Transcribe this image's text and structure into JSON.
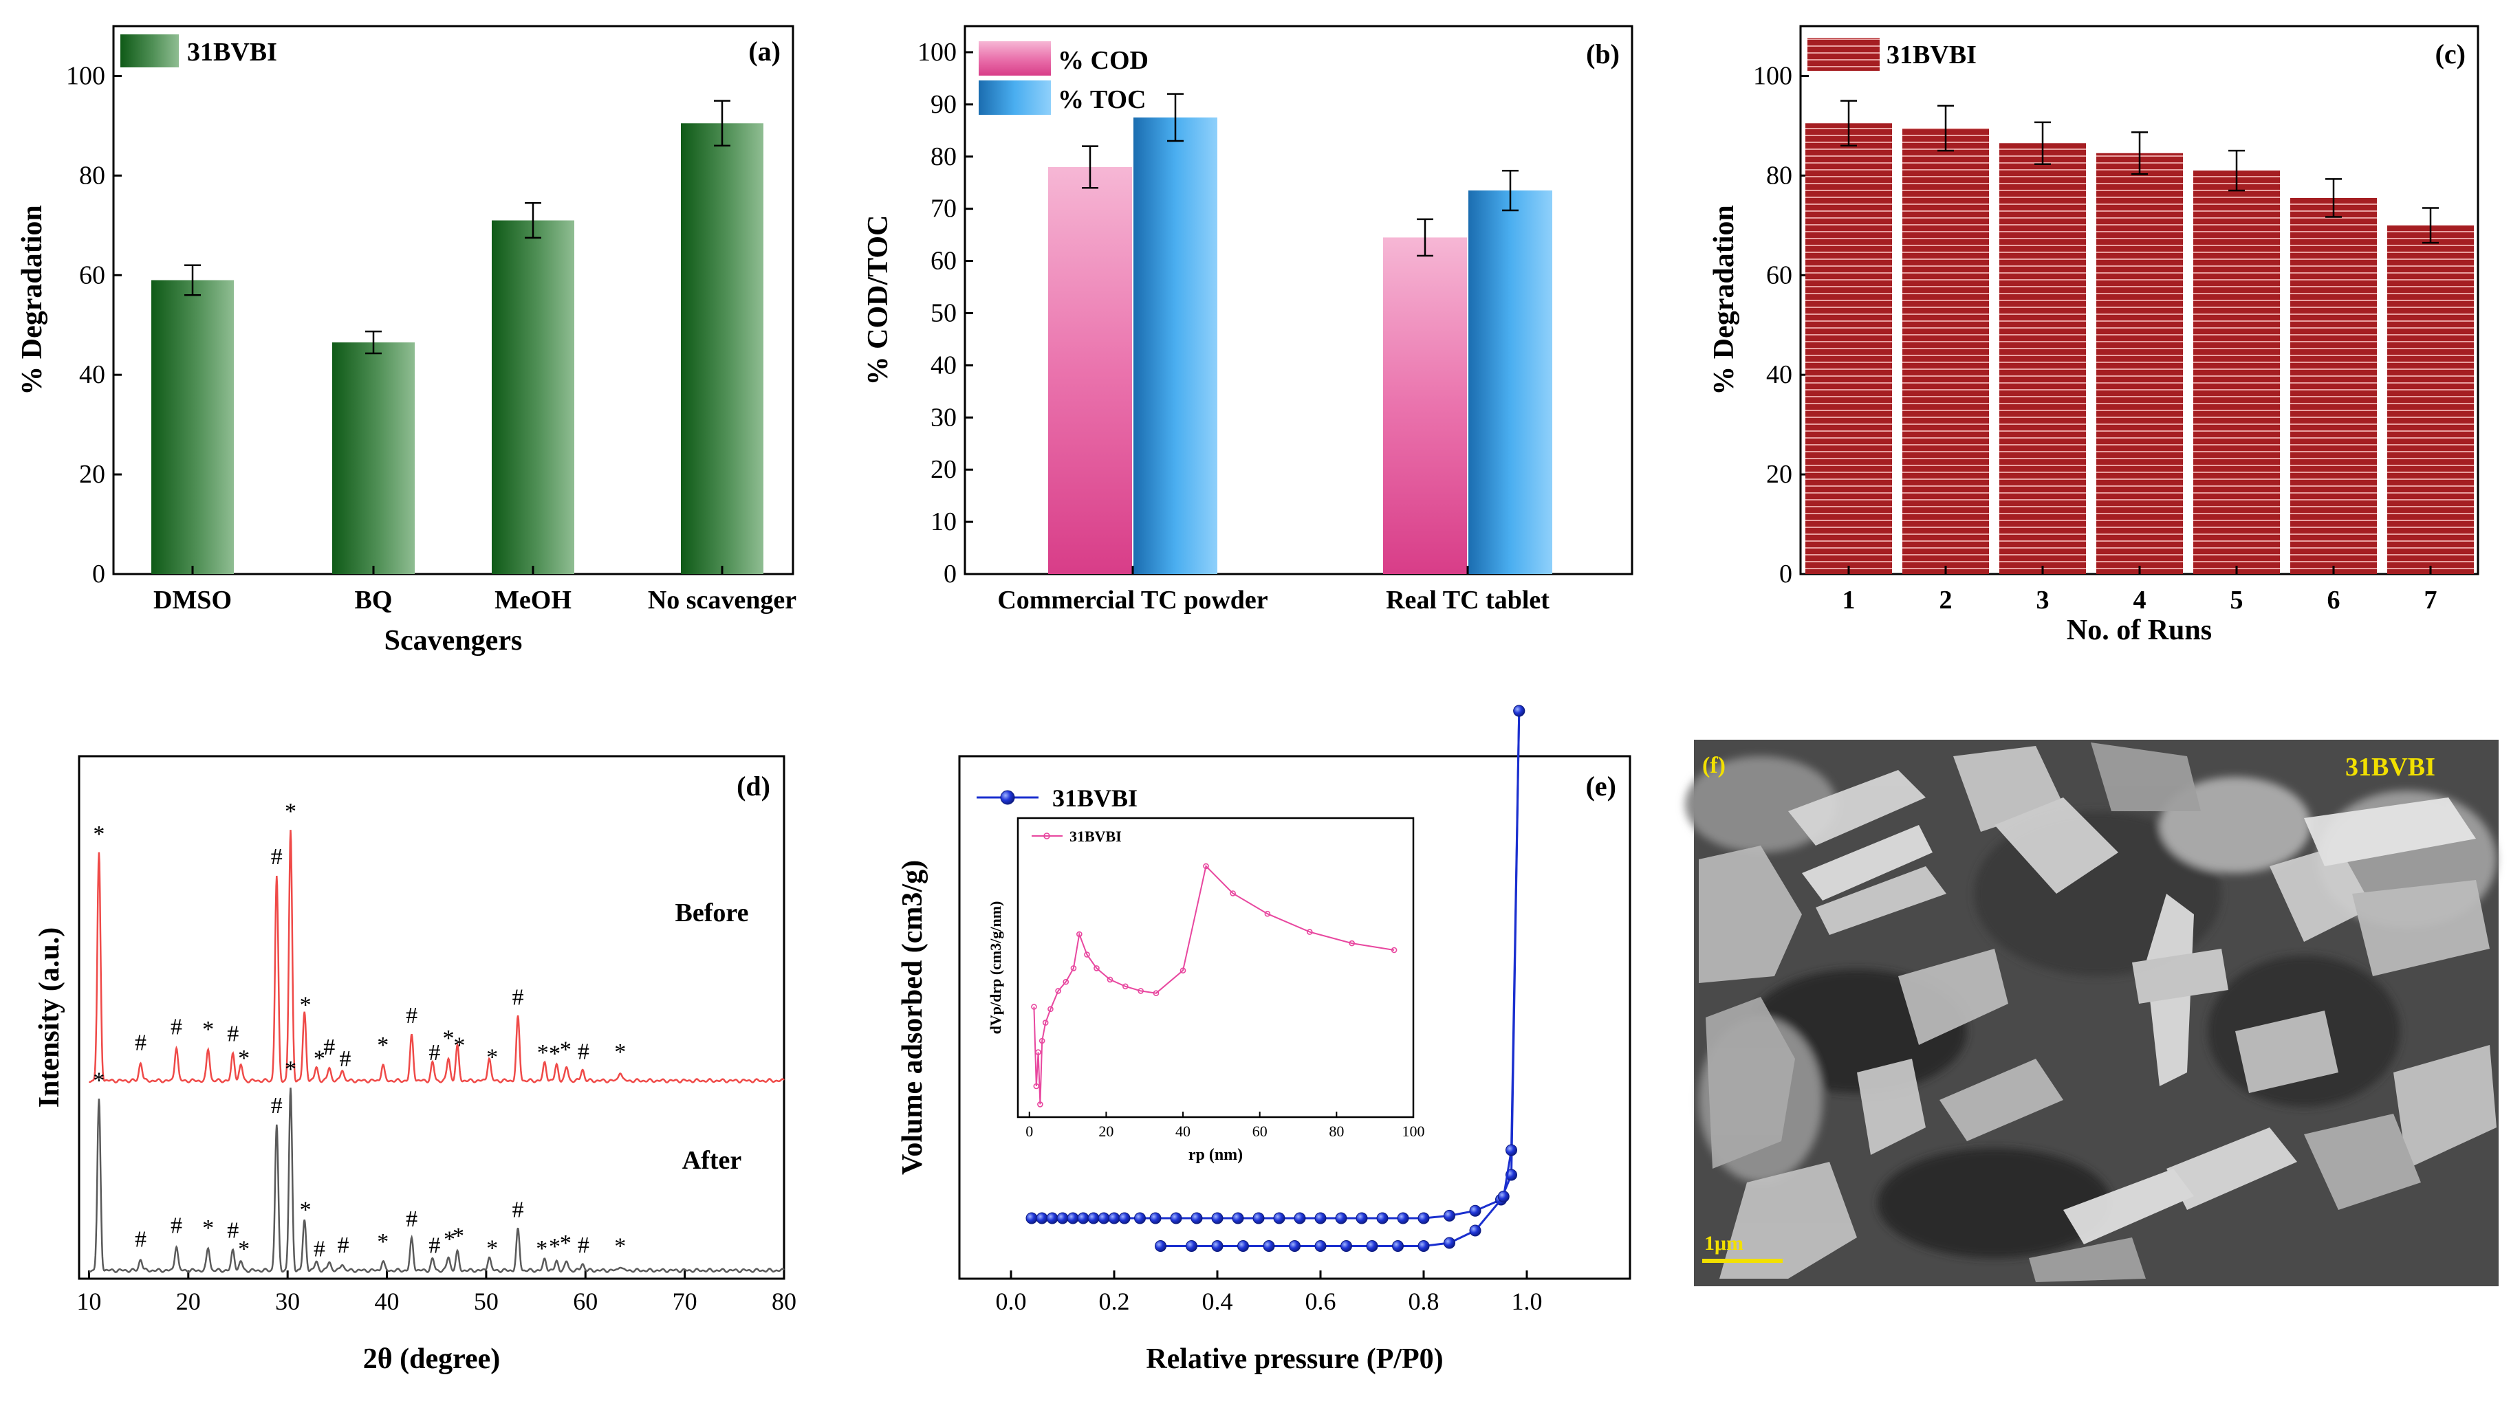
{
  "chart_data": [
    {
      "panel": "(a)",
      "type": "bar",
      "legend": "31BVBI",
      "categories": [
        "DMSO",
        "BQ",
        "MeOH",
        "No scavenger"
      ],
      "values": [
        59,
        46.5,
        71,
        90.5
      ],
      "errors": [
        3,
        2.2,
        3.5,
        4.5
      ],
      "xlabel": "Scavengers",
      "ylabel": "% Degradation",
      "ylim": [
        0,
        110
      ],
      "yticks": [
        "0",
        "20",
        "40",
        "60",
        "80",
        "100"
      ],
      "color": "#1f6b24"
    },
    {
      "panel": "(b)",
      "type": "bar",
      "categories": [
        "Commercial TC powder",
        "Real TC tablet"
      ],
      "series": [
        {
          "name": "% COD",
          "values": [
            78,
            64.5
          ],
          "errors": [
            4,
            3.5
          ],
          "color": "#e9579e"
        },
        {
          "name": "% TOC",
          "values": [
            87.5,
            73.5
          ],
          "errors": [
            4.5,
            3.8
          ],
          "color": "#3fa4e6"
        }
      ],
      "ylabel": "% COD/TOC",
      "ylim": [
        0,
        105
      ],
      "yticks": [
        "0",
        "10",
        "20",
        "30",
        "40",
        "50",
        "60",
        "70",
        "80",
        "90",
        "100"
      ]
    },
    {
      "panel": "(c)",
      "type": "bar",
      "legend": "31BVBI",
      "categories": [
        "1",
        "2",
        "3",
        "4",
        "5",
        "6",
        "7"
      ],
      "values": [
        90.5,
        89.5,
        86.5,
        84.5,
        81,
        75.5,
        70
      ],
      "errors": [
        4.5,
        4.5,
        4.2,
        4.2,
        4,
        3.8,
        3.5
      ],
      "xlabel": "No. of Runs",
      "ylabel": "% Degradation",
      "ylim": [
        0,
        110
      ],
      "yticks": [
        "0",
        "20",
        "40",
        "60",
        "80",
        "100"
      ],
      "color": "#9b1d20"
    },
    {
      "panel": "(d)",
      "type": "line",
      "xlabel": "2θ (degree)",
      "ylabel": "Intensity (a.u.)",
      "xlim": [
        9,
        80
      ],
      "xticks": [
        "10",
        "20",
        "30",
        "40",
        "50",
        "60",
        "70",
        "80"
      ],
      "series": [
        {
          "name": "Before",
          "color": "#ef4a48",
          "peaks": [
            [
              11,
              100
            ],
            [
              15.2,
              8
            ],
            [
              18.8,
              15
            ],
            [
              22,
              14
            ],
            [
              24.5,
              12
            ],
            [
              25.3,
              7
            ],
            [
              28.9,
              90
            ],
            [
              30.3,
              110
            ],
            [
              31.7,
              30
            ],
            [
              32.9,
              6
            ],
            [
              34.2,
              6
            ],
            [
              35.5,
              5
            ],
            [
              39.6,
              7
            ],
            [
              42.5,
              20
            ],
            [
              44.6,
              8
            ],
            [
              46.2,
              10
            ],
            [
              47.1,
              15
            ],
            [
              50.3,
              10
            ],
            [
              53.2,
              28
            ],
            [
              55.9,
              8
            ],
            [
              57.1,
              7
            ],
            [
              58.1,
              6
            ],
            [
              59.7,
              5
            ],
            [
              63.5,
              4
            ]
          ]
        },
        {
          "name": "After",
          "color": "#5a5a5a",
          "peaks": [
            [
              11,
              75
            ],
            [
              15.2,
              5
            ],
            [
              18.8,
              11
            ],
            [
              22,
              10
            ],
            [
              24.5,
              9
            ],
            [
              25.3,
              4
            ],
            [
              28.9,
              64
            ],
            [
              30.3,
              80
            ],
            [
              31.7,
              22
            ],
            [
              32.9,
              4
            ],
            [
              34.2,
              4
            ],
            [
              35.5,
              3
            ],
            [
              39.6,
              4
            ],
            [
              42.5,
              14
            ],
            [
              44.6,
              5
            ],
            [
              46.2,
              6
            ],
            [
              47.1,
              8
            ],
            [
              50.3,
              6
            ],
            [
              53.2,
              18
            ],
            [
              55.9,
              5
            ],
            [
              57.1,
              4
            ],
            [
              58.1,
              4
            ],
            [
              59.7,
              3
            ],
            [
              63.5,
              2
            ]
          ]
        }
      ],
      "markers_before": [
        {
          "x": 11,
          "s": "*"
        },
        {
          "x": 15.2,
          "s": "#"
        },
        {
          "x": 18.8,
          "s": "#"
        },
        {
          "x": 22,
          "s": "*"
        },
        {
          "x": 24.5,
          "s": "#"
        },
        {
          "x": 25.6,
          "s": "*"
        },
        {
          "x": 28.9,
          "s": "#"
        },
        {
          "x": 30.3,
          "s": "*"
        },
        {
          "x": 31.8,
          "s": "*"
        },
        {
          "x": 33.2,
          "s": "*"
        },
        {
          "x": 34.2,
          "s": "#"
        },
        {
          "x": 35.8,
          "s": "#"
        },
        {
          "x": 39.6,
          "s": "*"
        },
        {
          "x": 42.5,
          "s": "#"
        },
        {
          "x": 44.8,
          "s": "#"
        },
        {
          "x": 46.2,
          "s": "*"
        },
        {
          "x": 47.3,
          "s": "*"
        },
        {
          "x": 50.6,
          "s": "*"
        },
        {
          "x": 53.2,
          "s": "#"
        },
        {
          "x": 55.7,
          "s": "*"
        },
        {
          "x": 56.9,
          "s": "*"
        },
        {
          "x": 58,
          "s": "*"
        },
        {
          "x": 59.8,
          "s": "#"
        },
        {
          "x": 63.5,
          "s": "*"
        }
      ],
      "markers_after": [
        {
          "x": 11,
          "s": "*"
        },
        {
          "x": 15.2,
          "s": "#"
        },
        {
          "x": 18.8,
          "s": "#"
        },
        {
          "x": 22,
          "s": "*"
        },
        {
          "x": 24.5,
          "s": "#"
        },
        {
          "x": 25.6,
          "s": "*"
        },
        {
          "x": 28.9,
          "s": "#"
        },
        {
          "x": 30.3,
          "s": "*"
        },
        {
          "x": 31.8,
          "s": "*"
        },
        {
          "x": 33.2,
          "s": "#"
        },
        {
          "x": 35.6,
          "s": "#"
        },
        {
          "x": 39.6,
          "s": "*"
        },
        {
          "x": 42.5,
          "s": "#"
        },
        {
          "x": 44.8,
          "s": "#"
        },
        {
          "x": 46.3,
          "s": "*"
        },
        {
          "x": 47.2,
          "s": "*"
        },
        {
          "x": 50.6,
          "s": "*"
        },
        {
          "x": 53.2,
          "s": "#"
        },
        {
          "x": 55.6,
          "s": "*"
        },
        {
          "x": 56.9,
          "s": "*"
        },
        {
          "x": 58,
          "s": "*"
        },
        {
          "x": 59.8,
          "s": "#"
        },
        {
          "x": 63.5,
          "s": "*"
        }
      ]
    },
    {
      "panel": "(e)",
      "type": "line",
      "legend": "31BVBI",
      "xlabel": "Relative pressure (P/P0)",
      "ylabel": "Volume adsorbed (cm3/g)",
      "xlim": [
        -0.1,
        1.2
      ],
      "ylim": [
        0,
        100
      ],
      "xticks": [
        "0.0",
        "0.2",
        "0.4",
        "0.6",
        "0.8",
        "1.0"
      ],
      "color": "#1a2fcf",
      "adsorption": [
        [
          0.04,
          0
        ],
        [
          0.06,
          0
        ],
        [
          0.08,
          0
        ],
        [
          0.1,
          0
        ],
        [
          0.12,
          0
        ],
        [
          0.14,
          0
        ],
        [
          0.16,
          0
        ],
        [
          0.18,
          0
        ],
        [
          0.2,
          0
        ],
        [
          0.22,
          0
        ],
        [
          0.25,
          0
        ],
        [
          0.28,
          0
        ],
        [
          0.32,
          0
        ],
        [
          0.36,
          0
        ],
        [
          0.4,
          0
        ],
        [
          0.44,
          0
        ],
        [
          0.48,
          0
        ],
        [
          0.52,
          0
        ],
        [
          0.56,
          0
        ],
        [
          0.6,
          0
        ],
        [
          0.64,
          0
        ],
        [
          0.68,
          0
        ],
        [
          0.72,
          0
        ],
        [
          0.76,
          0
        ],
        [
          0.8,
          0
        ],
        [
          0.85,
          0.4
        ],
        [
          0.9,
          1.2
        ],
        [
          0.95,
          3
        ],
        [
          0.97,
          7
        ],
        [
          0.985,
          82
        ]
      ],
      "desorption": [
        [
          0.985,
          82
        ],
        [
          0.97,
          11
        ],
        [
          0.955,
          3.5
        ],
        [
          0.9,
          -2
        ],
        [
          0.85,
          -4
        ],
        [
          0.8,
          -4.5
        ],
        [
          0.75,
          -4.5
        ],
        [
          0.7,
          -4.5
        ],
        [
          0.65,
          -4.5
        ],
        [
          0.6,
          -4.5
        ],
        [
          0.55,
          -4.5
        ],
        [
          0.5,
          -4.5
        ],
        [
          0.45,
          -4.5
        ],
        [
          0.4,
          -4.5
        ],
        [
          0.35,
          -4.5
        ],
        [
          0.29,
          -4.5
        ]
      ],
      "inset": {
        "legend": "31BVBI",
        "xlabel": "rp (nm)",
        "ylabel": "dVp/drp (cm3/g/nm)",
        "xlim": [
          -3,
          100
        ],
        "xticks": [
          "0",
          "20",
          "40",
          "60",
          "80",
          "100"
        ],
        "color": "#e8479f",
        "points": [
          [
            1.2,
            45
          ],
          [
            1.8,
            10
          ],
          [
            2.3,
            25
          ],
          [
            2.8,
            2
          ],
          [
            3.3,
            30
          ],
          [
            4.2,
            38
          ],
          [
            5.5,
            44
          ],
          [
            7.5,
            52
          ],
          [
            9.5,
            56
          ],
          [
            11.5,
            62
          ],
          [
            13,
            77
          ],
          [
            15,
            68
          ],
          [
            17.5,
            62
          ],
          [
            21,
            57
          ],
          [
            25,
            54
          ],
          [
            29,
            52
          ],
          [
            33,
            51
          ],
          [
            40,
            61
          ],
          [
            46,
            107
          ],
          [
            53,
            95
          ],
          [
            62,
            86
          ],
          [
            73,
            78
          ],
          [
            84,
            73
          ],
          [
            95,
            70
          ]
        ]
      }
    }
  ],
  "panel_f": {
    "label": "(f)",
    "sample": "31BVBI",
    "scale_bar": "1μm"
  }
}
